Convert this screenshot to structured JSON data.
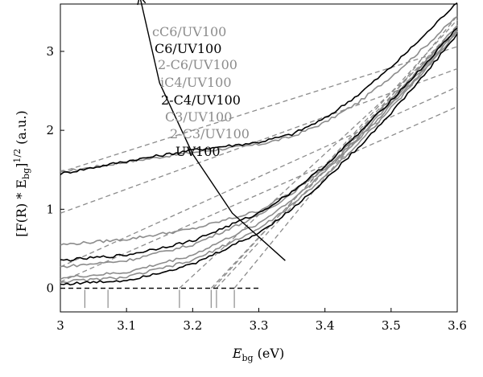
{
  "chart_data": {
    "type": "line",
    "xlabel_main": "E",
    "xlabel_sub": "bg",
    "xlabel_unit": " (eV)",
    "ylabel_pre": "[F(R) * E",
    "ylabel_sub": "bg",
    "ylabel_post": "]",
    "ylabel_sup": "1/2",
    "ylabel_unit": " (a.u.)",
    "xlim": [
      3.0,
      3.6
    ],
    "ylim": [
      -0.3,
      3.6
    ],
    "xticks": [
      "3",
      "3.1",
      "3.2",
      "3.3",
      "3.4",
      "3.5",
      "3.6"
    ],
    "yticks": [
      "0",
      "1",
      "2",
      "3"
    ],
    "grid": false,
    "legend_order": [
      "cC6/UV100",
      "C6/UV100",
      "2-C6/UV100",
      "iC4/UV100",
      "2-C4/UV100",
      "C3/UV100",
      "2-C3/UV100",
      "UV100"
    ],
    "legend_colors": [
      "#8c8c8c",
      "#000000",
      "#8c8c8c",
      "#8c8c8c",
      "#000000",
      "#8c8c8c",
      "#8c8c8c",
      "#000000"
    ],
    "series": [
      {
        "name": "cC6/UV100",
        "color": "#8c8c8c",
        "x": [
          3.0,
          3.1,
          3.2,
          3.3,
          3.35,
          3.4,
          3.45,
          3.5,
          3.55,
          3.6
        ],
        "y": [
          1.47,
          1.6,
          1.72,
          1.82,
          1.92,
          2.1,
          2.35,
          2.68,
          3.05,
          3.45
        ]
      },
      {
        "name": "C6/UV100",
        "color": "#000000",
        "x": [
          3.0,
          3.1,
          3.2,
          3.3,
          3.35,
          3.4,
          3.45,
          3.5,
          3.55,
          3.6
        ],
        "y": [
          1.45,
          1.61,
          1.75,
          1.85,
          1.95,
          2.15,
          2.45,
          2.8,
          3.2,
          3.63
        ]
      },
      {
        "name": "2-C6/UV100",
        "color": "#8c8c8c",
        "x": [
          3.0,
          3.1,
          3.2,
          3.3,
          3.35,
          3.4,
          3.45,
          3.5,
          3.55,
          3.6
        ],
        "y": [
          0.55,
          0.62,
          0.75,
          0.98,
          1.22,
          1.52,
          1.9,
          2.35,
          2.8,
          3.28
        ]
      },
      {
        "name": "iC4/UV100",
        "color": "#8c8c8c",
        "x": [
          3.0,
          3.1,
          3.2,
          3.3,
          3.35,
          3.4,
          3.45,
          3.5,
          3.55,
          3.6
        ],
        "y": [
          0.27,
          0.35,
          0.55,
          0.92,
          1.2,
          1.55,
          1.95,
          2.4,
          2.85,
          3.33
        ]
      },
      {
        "name": "2-C4/UV100",
        "color": "#000000",
        "x": [
          3.0,
          3.1,
          3.2,
          3.3,
          3.35,
          3.4,
          3.45,
          3.5,
          3.55,
          3.6
        ],
        "y": [
          0.35,
          0.42,
          0.6,
          0.95,
          1.22,
          1.55,
          1.95,
          2.38,
          2.82,
          3.3
        ]
      },
      {
        "name": "C3/UV100",
        "color": "#8c8c8c",
        "x": [
          3.0,
          3.1,
          3.2,
          3.3,
          3.35,
          3.4,
          3.45,
          3.5,
          3.55,
          3.6
        ],
        "y": [
          0.13,
          0.2,
          0.42,
          0.82,
          1.12,
          1.48,
          1.88,
          2.32,
          2.77,
          3.27
        ]
      },
      {
        "name": "2-C3/UV100",
        "color": "#8c8c8c",
        "x": [
          3.0,
          3.1,
          3.2,
          3.3,
          3.35,
          3.4,
          3.45,
          3.5,
          3.55,
          3.6
        ],
        "y": [
          0.08,
          0.14,
          0.35,
          0.75,
          1.05,
          1.42,
          1.83,
          2.28,
          2.75,
          3.25
        ]
      },
      {
        "name": "UV100",
        "color": "#000000",
        "x": [
          3.0,
          3.1,
          3.2,
          3.3,
          3.35,
          3.4,
          3.45,
          3.5,
          3.55,
          3.6
        ],
        "y": [
          0.05,
          0.1,
          0.3,
          0.7,
          1.0,
          1.37,
          1.78,
          2.22,
          2.7,
          3.22
        ]
      }
    ],
    "baselines": [
      {
        "x": [
          3.0,
          3.6
        ],
        "y": [
          1.47,
          3.06
        ]
      },
      {
        "x": [
          3.0,
          3.6
        ],
        "y": [
          0.95,
          2.78
        ]
      },
      {
        "x": [
          3.0,
          3.6
        ],
        "y": [
          0.27,
          2.55
        ]
      },
      {
        "x": [
          3.0,
          3.6
        ],
        "y": [
          0.08,
          2.3
        ]
      }
    ],
    "tangents": [
      {
        "x": [
          3.231,
          3.6
        ],
        "y": [
          0.0,
          3.4
        ]
      },
      {
        "x": [
          3.236,
          3.6
        ],
        "y": [
          0.0,
          3.3
        ]
      },
      {
        "x": [
          3.263,
          3.6
        ],
        "y": [
          0.0,
          3.45
        ]
      },
      {
        "x": [
          3.228,
          3.6
        ],
        "y": [
          0.0,
          3.33
        ]
      },
      {
        "x": [
          3.18,
          3.6
        ],
        "y": [
          0.0,
          3.25
        ]
      }
    ],
    "zero_line": {
      "x": [
        3.0,
        3.3
      ],
      "y": [
        0.0,
        0.0
      ]
    },
    "edge_markers": [
      3.037,
      3.072,
      3.18,
      3.228,
      3.236,
      3.263
    ],
    "arrow": {
      "x": [
        3.34,
        3.26,
        3.2,
        3.15,
        3.12
      ],
      "y": [
        0.35,
        0.95,
        1.7,
        2.6,
        3.7
      ]
    }
  }
}
